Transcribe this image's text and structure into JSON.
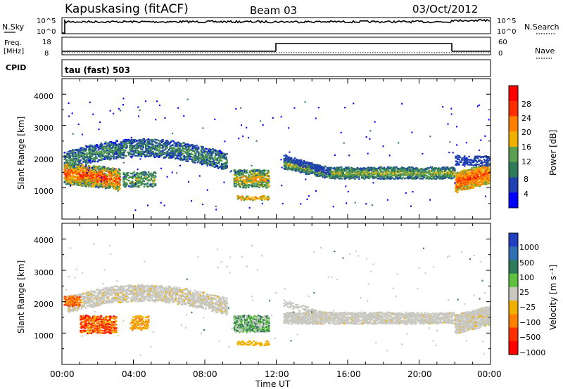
{
  "header": {
    "station": "Kapuskasing (fitACF)",
    "beam": "Beam 03",
    "date": "03/Oct/2012"
  },
  "strips": {
    "nsky_label": "N.Sky",
    "nsky_ticks": [
      "10^5",
      "10^0"
    ],
    "nsearch_label": "N.Search",
    "freq_label": "Freq.",
    "freq_unit": "[MHz]",
    "freq_ticks": [
      "18",
      "8"
    ],
    "nave_ticks": [
      "60",
      "0"
    ],
    "nave_label": "Nave",
    "cpid_label": "CPID",
    "cpid_value": "tau (fast) 503"
  },
  "chart_data": [
    {
      "type": "heatmap",
      "name": "power",
      "ylabel": "Slant Range [km]",
      "yticks": [
        "4000",
        "3000",
        "2000",
        "1000"
      ],
      "colorbar_label": "Power [dB]",
      "colorbar_ticks": [
        "28",
        "24",
        "20",
        "16",
        "12",
        "8",
        "4"
      ],
      "colors": [
        "#0000ff",
        "#2040b0",
        "#2e7a5a",
        "#5aa050",
        "#f0b000",
        "#ff8000",
        "#ff3000",
        "#ff0000"
      ]
    },
    {
      "type": "heatmap",
      "name": "velocity",
      "ylabel": "Slant Range [km]",
      "yticks": [
        "4000",
        "3000",
        "2000",
        "1000"
      ],
      "colorbar_label": "Velocity [m s⁻¹]",
      "colorbar_ticks": [
        "1000",
        "500",
        "100",
        "25",
        "−25",
        "−100",
        "−500",
        "−1000"
      ],
      "colors": [
        "#2040c0",
        "#3070b0",
        "#2e7a5a",
        "#60c040",
        "#c8c8c0",
        "#f0b000",
        "#ff8000",
        "#ff3000",
        "#ff0000"
      ]
    }
  ],
  "xaxis": {
    "ticks": [
      "00:00",
      "04:00",
      "08:00",
      "12:00",
      "16:00",
      "20:00",
      "00:00"
    ],
    "label": "Time UT"
  }
}
